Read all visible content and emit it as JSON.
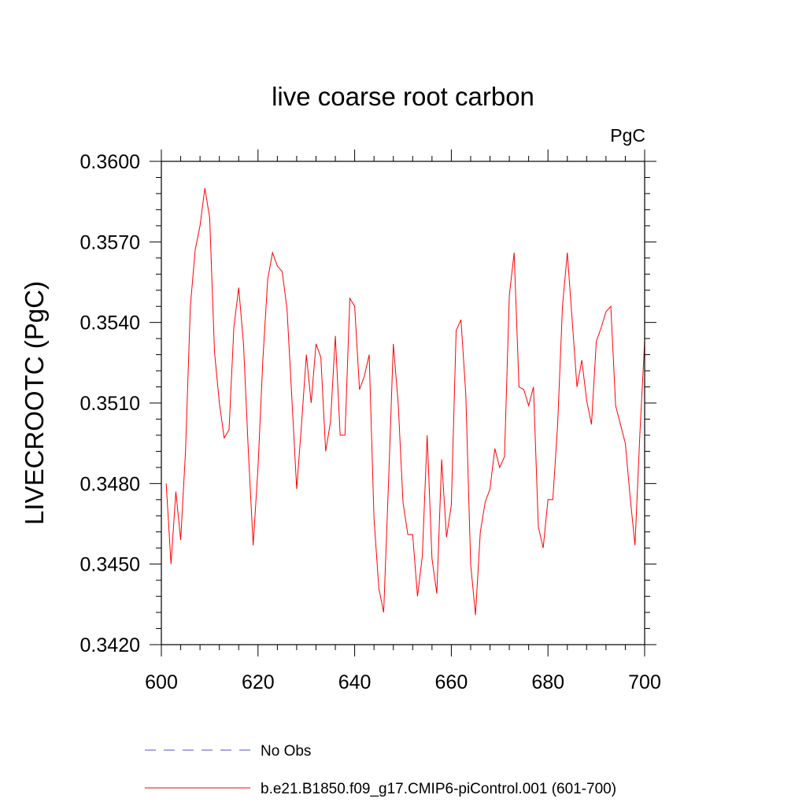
{
  "chart_data": {
    "type": "line",
    "title": "live coarse root carbon",
    "units_label": "PgC",
    "ylabel": "LIVECROOTC  (PgC)",
    "xlabel": "",
    "xlim": [
      600,
      700
    ],
    "ylim": [
      0.342,
      0.36
    ],
    "x_ticks": [
      600,
      620,
      640,
      660,
      680,
      700
    ],
    "y_ticks": [
      0.342,
      0.345,
      0.348,
      0.351,
      0.354,
      0.357,
      0.36
    ],
    "x_tick_labels": [
      "600",
      "620",
      "640",
      "660",
      "680",
      "700"
    ],
    "y_tick_labels": [
      "0.3420",
      "0.3450",
      "0.3480",
      "0.3510",
      "0.3540",
      "0.3570",
      "0.3600"
    ],
    "grid": false,
    "legend_position": "bottom",
    "series": [
      {
        "name": "b.e21.B1850.f09_g17.CMIP6-piControl.001 (601-700)",
        "color": "#ff0000",
        "style": "solid",
        "x": [
          601,
          602,
          603,
          604,
          605,
          606,
          607,
          608,
          609,
          610,
          611,
          612,
          613,
          614,
          615,
          616,
          617,
          618,
          619,
          620,
          621,
          622,
          623,
          624,
          625,
          626,
          627,
          628,
          629,
          630,
          631,
          632,
          633,
          634,
          635,
          636,
          637,
          638,
          639,
          640,
          641,
          642,
          643,
          644,
          645,
          646,
          647,
          648,
          649,
          650,
          651,
          652,
          653,
          654,
          655,
          656,
          657,
          658,
          659,
          660,
          661,
          662,
          663,
          664,
          665,
          666,
          667,
          668,
          669,
          670,
          671,
          672,
          673,
          674,
          675,
          676,
          677,
          678,
          679,
          680,
          681,
          682,
          683,
          684,
          685,
          686,
          687,
          688,
          689,
          690,
          691,
          692,
          693,
          694,
          695,
          696,
          697,
          698,
          699,
          700
        ],
        "y": [
          0.348,
          0.345,
          0.3477,
          0.3459,
          0.3492,
          0.3546,
          0.3567,
          0.3576,
          0.359,
          0.3579,
          0.3529,
          0.351,
          0.3497,
          0.35,
          0.3538,
          0.3553,
          0.3532,
          0.3492,
          0.3457,
          0.3486,
          0.3526,
          0.3556,
          0.3566,
          0.3561,
          0.3559,
          0.3545,
          0.3512,
          0.3478,
          0.3502,
          0.3528,
          0.351,
          0.3532,
          0.3527,
          0.3492,
          0.3503,
          0.3535,
          0.3498,
          0.3498,
          0.3549,
          0.3546,
          0.3515,
          0.352,
          0.3528,
          0.3467,
          0.3441,
          0.3432,
          0.348,
          0.3532,
          0.351,
          0.3473,
          0.3461,
          0.3461,
          0.3438,
          0.3453,
          0.3498,
          0.3452,
          0.3439,
          0.3489,
          0.346,
          0.3472,
          0.3537,
          0.3541,
          0.3513,
          0.345,
          0.3431,
          0.3462,
          0.3473,
          0.3478,
          0.3493,
          0.3486,
          0.349,
          0.355,
          0.3566,
          0.3516,
          0.3515,
          0.3509,
          0.3516,
          0.3464,
          0.3456,
          0.3474,
          0.3474,
          0.3502,
          0.3546,
          0.3566,
          0.3541,
          0.3516,
          0.3526,
          0.3511,
          0.3502,
          0.3533,
          0.3538,
          0.3544,
          0.3546,
          0.3509,
          0.3502,
          0.3495,
          0.3475,
          0.3457,
          0.3498,
          0.3533
        ]
      },
      {
        "name": "No Obs",
        "color": "#5050c8",
        "style": "dashed",
        "x": [],
        "y": []
      }
    ]
  }
}
